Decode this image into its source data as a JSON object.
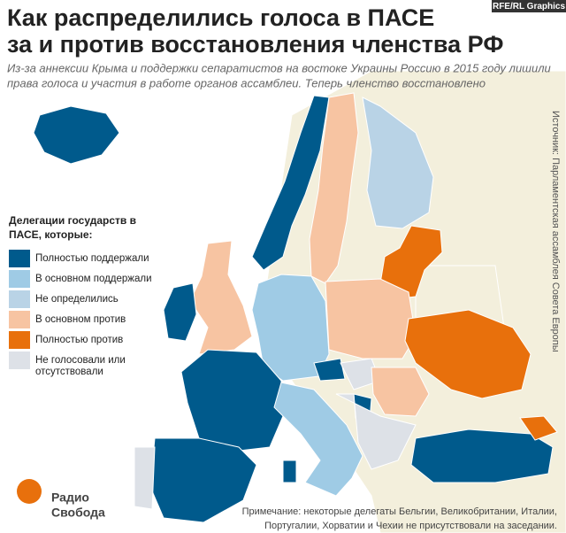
{
  "header": {
    "title": [
      "Как распределились голоса в ПАСЕ",
      "за и против восстановления членства РФ"
    ],
    "subtitle": [
      "Из-за аннексии Крыма и поддержки сепаратистов на востоке Украины Россию в 2015 году лишили",
      "права голоса и участия в работе органов ассамблеи. Теперь членство восстановлено"
    ],
    "badge": "RFE/RL Graphics"
  },
  "source": "Источник: Парламентская ассамблея Совета Европы",
  "legend": {
    "title": [
      "Делегации государств в",
      "ПАСЕ, которые:"
    ],
    "items": [
      {
        "label": [
          "Полностью поддержали"
        ],
        "color": "#005a8c"
      },
      {
        "label": [
          "В основном поддержали"
        ],
        "color": "#9fcbe5"
      },
      {
        "label": [
          "Не определились"
        ],
        "color": "#b9d3e6"
      },
      {
        "label": [
          "В основном против"
        ],
        "color": "#f7c4a2"
      },
      {
        "label": [
          "Полностью против"
        ],
        "color": "#e8700c"
      },
      {
        "label": [
          "Не голосовали или",
          "отсутствовали"
        ],
        "color": "#dde1e7"
      }
    ]
  },
  "logo": [
    "Радио",
    "Свобода"
  ],
  "note": [
    "Примечание: некоторые делегаты Бельгии, Великобритании, Италии,",
    "Португалии, Хорватии и Чехии не присутствовали на заседании."
  ]
}
